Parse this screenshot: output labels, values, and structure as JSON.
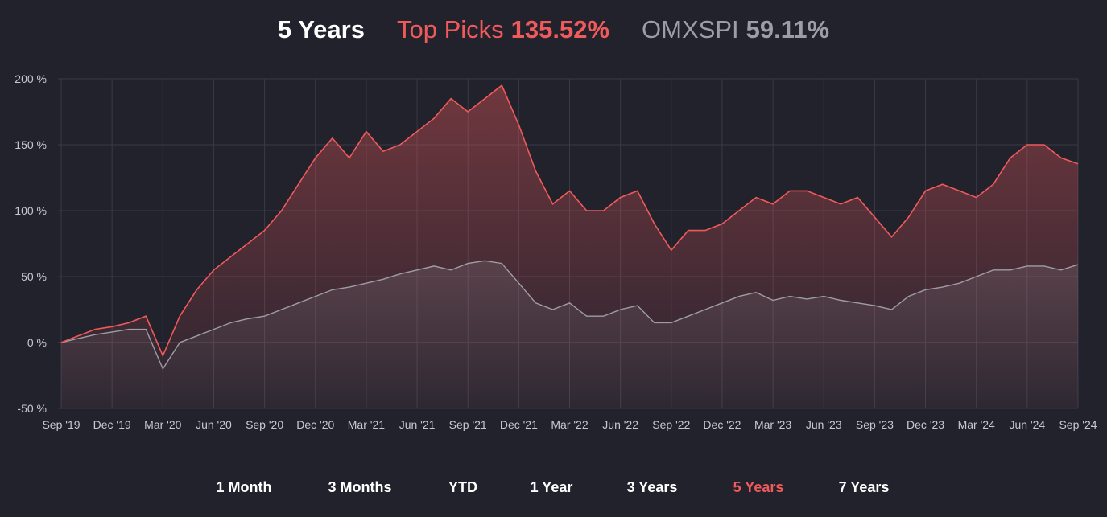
{
  "header": {
    "period": "5 Years",
    "series_a_label": "Top Picks",
    "series_a_value": "135.52%",
    "series_b_label": "OMXSPI",
    "series_b_value": "59.11%"
  },
  "ranges": {
    "items": [
      "1 Month",
      "3 Months",
      "YTD",
      "1 Year",
      "3 Years",
      "5 Years",
      "7 Years"
    ],
    "active": "5 Years"
  },
  "colors": {
    "background": "#22222d",
    "accent": "#f05a5a",
    "index": "#9d9da5",
    "grid": "#3a3a47"
  },
  "chart_data": {
    "type": "area",
    "ylim": [
      -50,
      200
    ],
    "yticks": [
      "200 %",
      "150 %",
      "100 %",
      "50 %",
      "0 %",
      "-50 %"
    ],
    "ytick_values": [
      200,
      150,
      100,
      50,
      0,
      -50
    ],
    "xticks": [
      "Sep '19",
      "Dec '19",
      "Mar '20",
      "Jun '20",
      "Sep '20",
      "Dec '20",
      "Mar '21",
      "Jun '21",
      "Sep '21",
      "Dec '21",
      "Mar '22",
      "Jun '22",
      "Sep '22",
      "Dec '22",
      "Mar '23",
      "Jun '23",
      "Sep '23",
      "Dec '23",
      "Mar '24",
      "Jun '24",
      "Sep '24"
    ],
    "x": [
      "2019-09",
      "2019-10",
      "2019-11",
      "2019-12",
      "2020-01",
      "2020-02",
      "2020-03",
      "2020-04",
      "2020-05",
      "2020-06",
      "2020-07",
      "2020-08",
      "2020-09",
      "2020-10",
      "2020-11",
      "2020-12",
      "2021-01",
      "2021-02",
      "2021-03",
      "2021-04",
      "2021-05",
      "2021-06",
      "2021-07",
      "2021-08",
      "2021-09",
      "2021-10",
      "2021-11",
      "2021-12",
      "2022-01",
      "2022-02",
      "2022-03",
      "2022-04",
      "2022-05",
      "2022-06",
      "2022-07",
      "2022-08",
      "2022-09",
      "2022-10",
      "2022-11",
      "2022-12",
      "2023-01",
      "2023-02",
      "2023-03",
      "2023-04",
      "2023-05",
      "2023-06",
      "2023-07",
      "2023-08",
      "2023-09",
      "2023-10",
      "2023-11",
      "2023-12",
      "2024-01",
      "2024-02",
      "2024-03",
      "2024-04",
      "2024-05",
      "2024-06",
      "2024-07",
      "2024-08",
      "2024-09"
    ],
    "grid": true,
    "series": [
      {
        "name": "Top Picks",
        "color": "#f05a5a",
        "values": [
          0,
          5,
          10,
          12,
          15,
          20,
          -10,
          20,
          40,
          55,
          65,
          75,
          85,
          100,
          120,
          140,
          155,
          140,
          160,
          145,
          150,
          160,
          170,
          185,
          175,
          185,
          195,
          165,
          130,
          105,
          115,
          100,
          100,
          110,
          115,
          90,
          70,
          85,
          85,
          90,
          100,
          110,
          105,
          115,
          115,
          110,
          105,
          110,
          95,
          80,
          95,
          115,
          120,
          115,
          110,
          120,
          140,
          150,
          150,
          140,
          135.52
        ]
      },
      {
        "name": "OMXSPI",
        "color": "#9d9da5",
        "values": [
          0,
          3,
          6,
          8,
          10,
          10,
          -20,
          0,
          5,
          10,
          15,
          18,
          20,
          25,
          30,
          35,
          40,
          42,
          45,
          48,
          52,
          55,
          58,
          55,
          60,
          62,
          60,
          45,
          30,
          25,
          30,
          20,
          20,
          25,
          28,
          15,
          15,
          20,
          25,
          30,
          35,
          38,
          32,
          35,
          33,
          35,
          32,
          30,
          28,
          25,
          35,
          40,
          42,
          45,
          50,
          55,
          55,
          58,
          58,
          55,
          59.11
        ]
      }
    ]
  }
}
